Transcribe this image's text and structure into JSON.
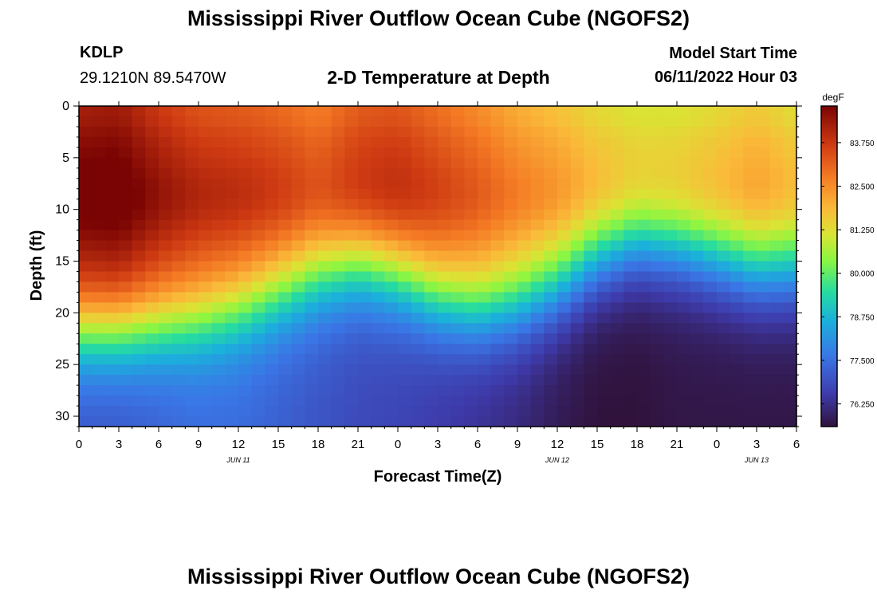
{
  "page": {
    "title": "Mississippi River Outflow Ocean Cube (NGOFS2)",
    "title_repeat": "Mississippi River Outflow Ocean Cube (NGOFS2)",
    "station": "KDLP",
    "coords": "29.1210N  89.5470W",
    "subtitle": "2-D Temperature at Depth",
    "start_label": "Model Start Time",
    "start_value": "06/11/2022 Hour 03"
  },
  "chart_data": {
    "type": "heatmap",
    "title": "2-D Temperature at Depth",
    "xlabel": "Forecast Time(Z)",
    "ylabel": "Depth (ft)",
    "x_range_hours": [
      0,
      54
    ],
    "x_tick_labels": [
      "0",
      "3",
      "6",
      "9",
      "12",
      "15",
      "18",
      "21",
      "0",
      "3",
      "6",
      "9",
      "12",
      "15",
      "18",
      "21",
      "0",
      "3",
      "6"
    ],
    "date_labels": [
      {
        "label": "JUN 11",
        "hour": 12
      },
      {
        "label": "JUN 12",
        "hour": 36
      },
      {
        "label": "JUN 13",
        "hour": 51
      }
    ],
    "y_range_ft": [
      0,
      31
    ],
    "y_tick_labels": [
      "0",
      "5",
      "10",
      "15",
      "20",
      "25",
      "30"
    ],
    "colorbar": {
      "unit": "degF",
      "range": [
        75.6,
        84.8
      ],
      "tick_labels": [
        "83.750",
        "82.500",
        "81.250",
        "80.000",
        "78.750",
        "77.500",
        "76.250"
      ],
      "tick_values": [
        83.75,
        82.5,
        81.25,
        80.0,
        78.75,
        77.5,
        76.25
      ]
    },
    "thermocline": {
      "hours": [
        0,
        3,
        6,
        9,
        12,
        15,
        18,
        21,
        24,
        27,
        30,
        33,
        36,
        39,
        42,
        45,
        48,
        51,
        54
      ],
      "depth_ft": [
        21.5,
        21.5,
        21.0,
        20.5,
        19.5,
        18.0,
        16.5,
        15.5,
        16.5,
        18.5,
        19.5,
        19.0,
        17.5,
        15.0,
        13.5,
        14.0,
        15.0,
        16.0,
        16.0
      ],
      "surface_degF": [
        84.5,
        84.6,
        84.0,
        83.6,
        83.5,
        83.3,
        83.0,
        83.5,
        83.6,
        83.2,
        82.8,
        82.3,
        82.0,
        81.6,
        81.4,
        81.4,
        81.6,
        81.9,
        81.5
      ],
      "bottom_degF": [
        77.0,
        77.0,
        77.2,
        77.4,
        77.4,
        77.2,
        77.0,
        76.8,
        76.7,
        76.5,
        76.3,
        76.1,
        75.8,
        75.6,
        75.6,
        75.7,
        75.7,
        75.7,
        75.7
      ]
    }
  }
}
